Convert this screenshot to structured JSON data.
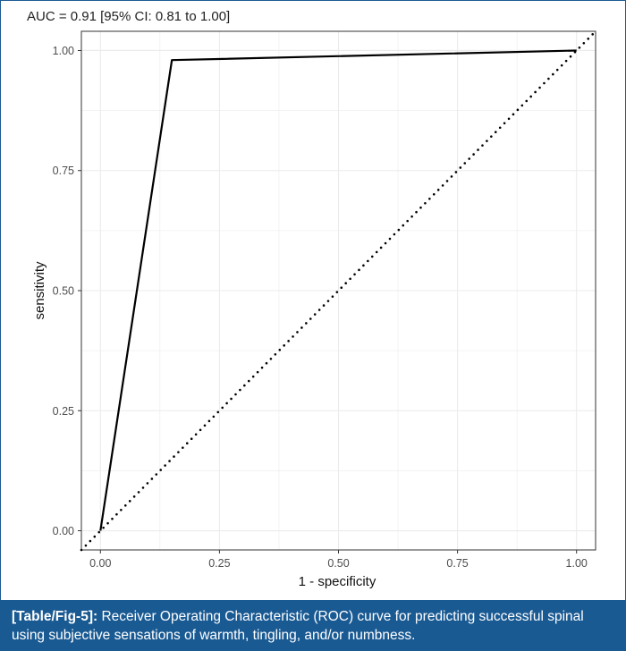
{
  "annotation": "AUC = 0.91 [95% CI: 0.81 to 1.00]",
  "caption": {
    "ref": "[Table/Fig-5]:",
    "text": " Receiver Operating Characteristic (ROC) curve for predicting successful spinal using subjective sensations of warmth, tingling, and/or numbness."
  },
  "colors": {
    "caption_bg": "#1a5a93",
    "curve": "#000000",
    "grid": "#ebebeb",
    "border": "#333333"
  },
  "chart_data": {
    "type": "line",
    "title": "",
    "xlabel": "1 - specificity",
    "ylabel": "sensitivity",
    "xlim": [
      -0.04,
      1.04
    ],
    "ylim": [
      -0.04,
      1.04
    ],
    "xticks": [
      "0.00",
      "0.25",
      "0.50",
      "0.75",
      "1.00"
    ],
    "yticks": [
      "0.00",
      "0.25",
      "0.50",
      "0.75",
      "1.00"
    ],
    "grid": true,
    "series": [
      {
        "style": "solid",
        "x": [
          0.0,
          0.15,
          1.0
        ],
        "y": [
          0.0,
          0.98,
          1.0
        ]
      },
      {
        "style": "dotted",
        "x": [
          -0.04,
          1.04
        ],
        "y": [
          -0.04,
          1.04
        ]
      }
    ]
  }
}
